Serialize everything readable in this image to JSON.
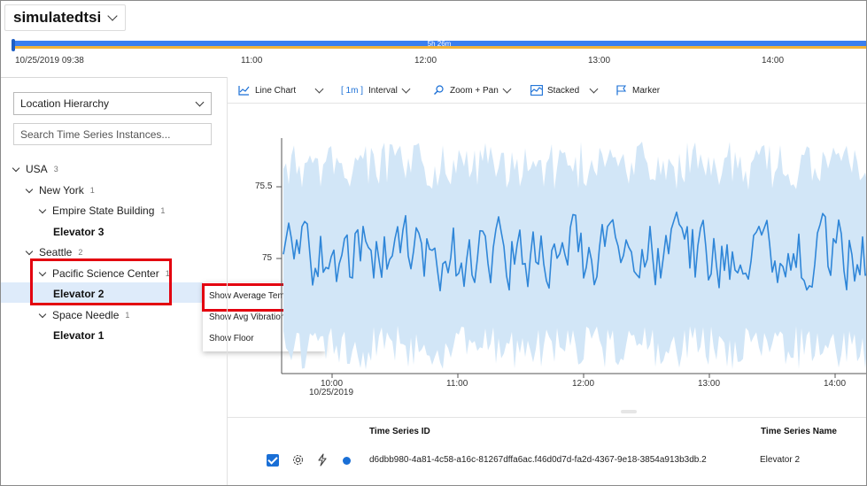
{
  "environment": {
    "name": "simulatedtsi"
  },
  "timeline": {
    "duration": "5h 26m",
    "labels": [
      "10/25/2019 09:38",
      "11:00",
      "12:00",
      "13:00",
      "14:00"
    ]
  },
  "hierarchy": {
    "selector_value": "Location Hierarchy",
    "search_placeholder": "Search Time Series Instances..."
  },
  "tree": [
    {
      "label": "USA",
      "count": "3"
    },
    {
      "label": "New York",
      "count": "1"
    },
    {
      "label": "Empire State Building",
      "count": "1"
    },
    {
      "label": "Elevator 3"
    },
    {
      "label": "Seattle",
      "count": "2"
    },
    {
      "label": "Pacific Science Center",
      "count": "1"
    },
    {
      "label": "Elevator 2"
    },
    {
      "label": "Space Needle",
      "count": "1"
    },
    {
      "label": "Elevator 1"
    }
  ],
  "context_menu": {
    "items": [
      "Show Average Temperature",
      "Show Avg Vibration",
      "Show Floor"
    ]
  },
  "toolbar": {
    "chart_type": "Line Chart",
    "interval_value": "[ 1m ]",
    "interval_label": "Interval",
    "zoom": "Zoom + Pan",
    "stacked": "Stacked",
    "marker": "Marker"
  },
  "chart_data": {
    "type": "line",
    "y_ticks": [
      "75.5",
      "75"
    ],
    "x_ticks": [
      "10:00",
      "11:00",
      "12:00",
      "13:00",
      "14:00"
    ],
    "x_sublabel": "10/25/2019",
    "series": [
      {
        "name": "Elevator 2",
        "color": "#2f86d8",
        "band_color": "#d2e6f7"
      }
    ]
  },
  "legend": {
    "headers": {
      "id": "Time Series ID",
      "name": "Time Series Name"
    },
    "row": {
      "id": "d6dbb980-4a81-4c58-a16c-81267dffa6ac.f46d0d7d-fa2d-4367-9e18-3854a913b3db.2",
      "name": "Elevator 2"
    }
  },
  "colors": {
    "accent": "#1a6fd6",
    "highlight": "#e3000f",
    "selected_row": "#deebfa"
  }
}
